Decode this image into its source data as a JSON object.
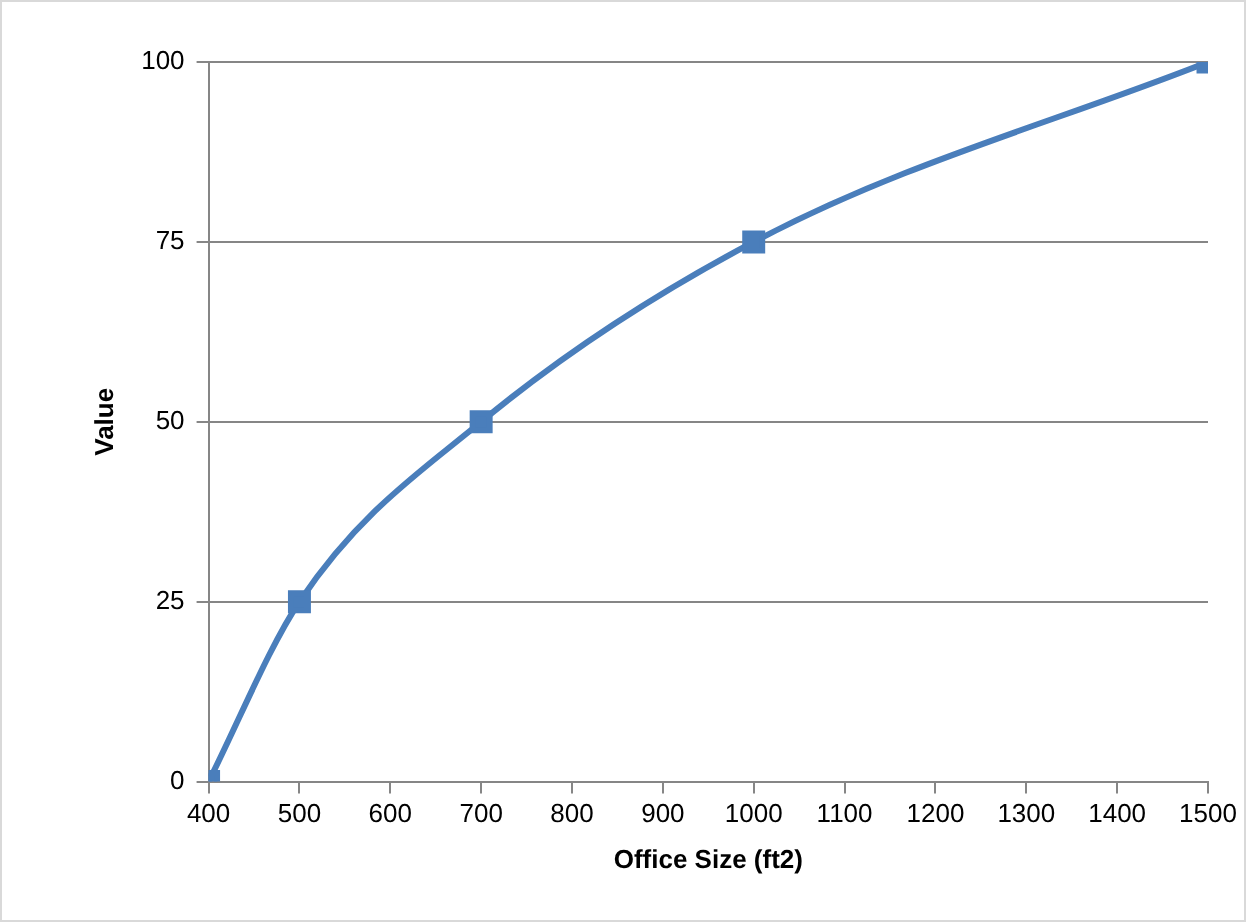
{
  "chart_data": {
    "type": "line",
    "xlabel": "Office Size (ft2)",
    "ylabel": "Value",
    "x": [
      400,
      500,
      700,
      1000,
      1500
    ],
    "series": [
      {
        "color": "#4a7ebb",
        "values": [
          0,
          25,
          50,
          75,
          100
        ]
      }
    ],
    "xlim": [
      400,
      1500
    ],
    "xticks": [
      400,
      500,
      600,
      700,
      800,
      900,
      1000,
      1100,
      1200,
      1300,
      1400,
      1500
    ],
    "ylim": [
      0,
      100
    ],
    "yticks": [
      0,
      25,
      50,
      75,
      100
    ],
    "grid": "y",
    "legend": false,
    "marker": "square",
    "line_style": "solid"
  }
}
